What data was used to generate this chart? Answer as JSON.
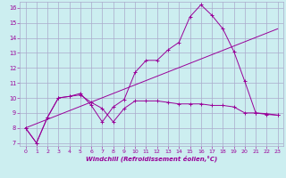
{
  "xlabel": "Windchill (Refroidissement éolien,°C)",
  "bg_color": "#cceef0",
  "grid_color": "#aaaacc",
  "line_color": "#990099",
  "xlim": [
    -0.5,
    23.5
  ],
  "ylim": [
    6.8,
    16.4
  ],
  "xticks": [
    0,
    1,
    2,
    3,
    4,
    5,
    6,
    7,
    8,
    9,
    10,
    11,
    12,
    13,
    14,
    15,
    16,
    17,
    18,
    19,
    20,
    21,
    22,
    23
  ],
  "yticks": [
    7,
    8,
    9,
    10,
    11,
    12,
    13,
    14,
    15,
    16
  ],
  "line1_x": [
    0,
    1,
    2,
    3,
    4,
    5,
    6,
    7,
    8,
    9,
    10,
    11,
    12,
    13,
    14,
    15,
    16,
    17,
    18,
    19,
    20,
    21,
    22,
    23
  ],
  "line1_y": [
    8.0,
    7.0,
    8.7,
    10.0,
    10.1,
    10.2,
    9.7,
    9.3,
    8.4,
    9.3,
    9.8,
    9.8,
    9.8,
    9.7,
    9.6,
    9.6,
    9.6,
    9.5,
    9.5,
    9.4,
    9.0,
    9.0,
    8.9,
    8.85
  ],
  "line2_x": [
    0,
    1,
    2,
    3,
    4,
    5,
    6,
    7,
    8,
    9,
    10,
    11,
    12,
    13,
    14,
    15,
    16,
    17,
    18,
    19,
    20,
    21,
    22,
    23
  ],
  "line2_y": [
    8.0,
    7.0,
    8.7,
    10.0,
    10.1,
    10.3,
    9.5,
    8.4,
    9.4,
    9.9,
    11.7,
    12.5,
    12.5,
    13.2,
    13.7,
    15.4,
    16.2,
    15.5,
    14.6,
    13.1,
    11.1,
    9.0,
    8.95,
    8.85
  ],
  "line3_x": [
    0,
    23
  ],
  "line3_y": [
    8.0,
    14.6
  ]
}
